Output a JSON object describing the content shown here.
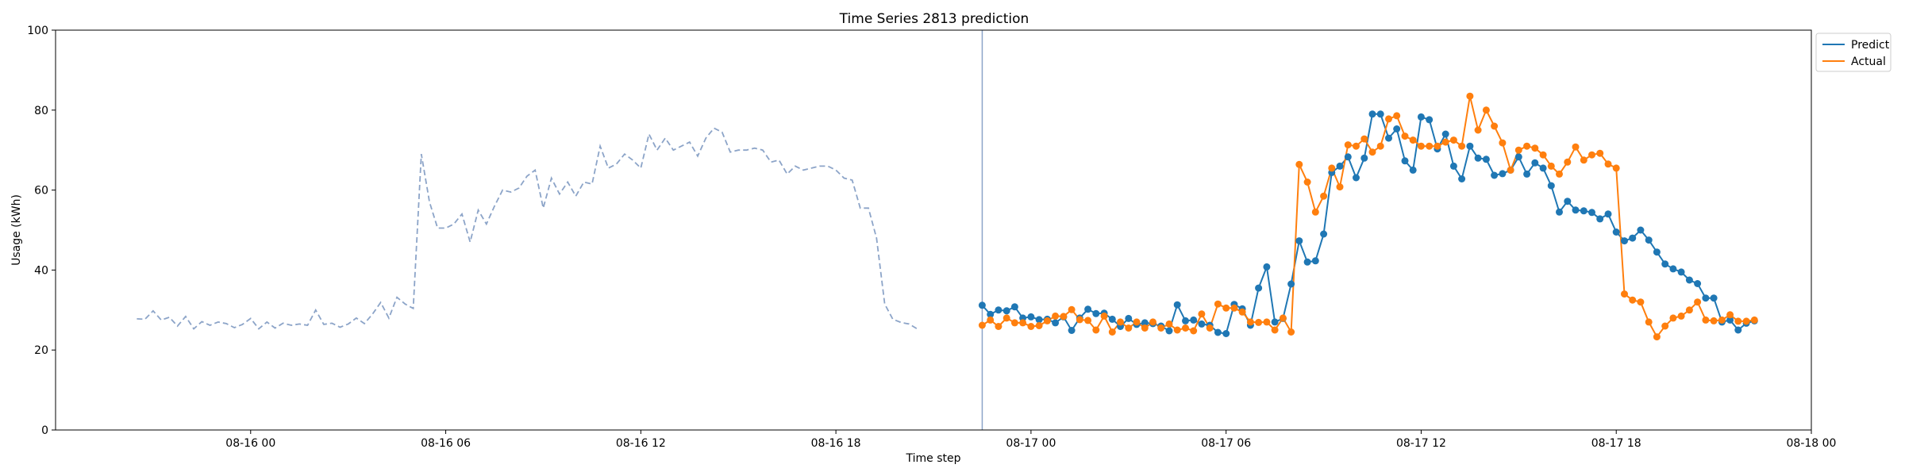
{
  "chart_data": {
    "type": "line",
    "title": "Time Series 2813 prediction",
    "xlabel": "Time step",
    "ylabel": "Usage (kWh)",
    "ylim": [
      0,
      100
    ],
    "yticks": [
      0,
      20,
      40,
      60,
      80,
      100
    ],
    "xlim": [
      "2023-08-15 18:00",
      "2023-08-18 00:00"
    ],
    "xticks": [
      {
        "t": "2023-08-16 00:00",
        "label": "08-16 00"
      },
      {
        "t": "2023-08-16 06:00",
        "label": "08-16 06"
      },
      {
        "t": "2023-08-16 12:00",
        "label": "08-16 12"
      },
      {
        "t": "2023-08-16 18:00",
        "label": "08-16 18"
      },
      {
        "t": "2023-08-17 00:00",
        "label": "08-17 00"
      },
      {
        "t": "2023-08-17 06:00",
        "label": "08-17 06"
      },
      {
        "t": "2023-08-17 12:00",
        "label": "08-17 12"
      },
      {
        "t": "2023-08-17 18:00",
        "label": "08-17 18"
      },
      {
        "t": "2023-08-18 00:00",
        "label": "08-18 00"
      }
    ],
    "split_time": "2023-08-16 22:30",
    "step_minutes": 15,
    "legend": {
      "position": "top-right",
      "entries": [
        "Predict",
        "Actual"
      ]
    },
    "colors": {
      "history": "#8ca4c8",
      "predict": "#1f77b4",
      "actual": "#ff7f0e",
      "split": "#8ca4c8"
    },
    "history": {
      "start": "2023-08-15 20:30",
      "values": [
        27.8,
        27.7,
        29.8,
        27.5,
        28.2,
        26.0,
        28.4,
        25.3,
        27.1,
        26.2,
        27.0,
        26.6,
        25.6,
        26.4,
        27.9,
        25.3,
        27.0,
        25.5,
        26.7,
        26.2,
        26.5,
        26.2,
        30.0,
        26.4,
        26.7,
        25.7,
        26.5,
        28.0,
        26.6,
        29.0,
        31.9,
        28.0,
        33.2,
        31.5,
        30.4,
        69.0,
        57.0,
        50.5,
        50.5,
        51.5,
        54.0,
        47.0,
        55.0,
        51.5,
        56.0,
        60.0,
        59.5,
        60.5,
        63.5,
        65.0,
        55.5,
        63.0,
        59.0,
        62.0,
        58.5,
        62.0,
        61.5,
        71.0,
        65.5,
        66.5,
        69.0,
        67.5,
        65.5,
        74.0,
        70.0,
        73.0,
        70.0,
        71.0,
        72.0,
        68.5,
        73.0,
        75.5,
        74.5,
        69.5,
        70.0,
        70.0,
        70.5,
        70.0,
        67.0,
        67.5,
        64.0,
        66.0,
        65.0,
        65.5,
        66.0,
        66.0,
        65.0,
        63.0,
        62.5,
        55.5,
        55.5,
        48.0,
        31.5,
        27.7,
        26.9,
        26.5,
        25.3
      ]
    },
    "series": [
      {
        "name": "Predict",
        "start": "2023-08-16 22:30",
        "values": [
          31.2,
          28.9,
          30.0,
          29.8,
          30.8,
          28.0,
          28.3,
          27.6,
          27.7,
          26.8,
          28.3,
          24.9,
          28.0,
          30.2,
          29.1,
          29.2,
          27.7,
          25.9,
          27.9,
          26.4,
          26.8,
          26.6,
          26.0,
          24.8,
          31.3,
          27.3,
          27.5,
          26.5,
          26.2,
          24.4,
          24.1,
          31.4,
          30.3,
          26.2,
          35.5,
          40.8,
          27.0,
          27.9,
          36.5,
          47.3,
          42.0,
          42.3,
          49.0,
          64.4,
          66.0,
          68.3,
          63.1,
          68.0,
          79.0,
          79.0,
          73.0,
          75.3,
          67.3,
          65.0,
          78.3,
          77.6,
          70.3,
          74.0,
          66.0,
          62.8,
          71.0,
          68.0,
          67.7,
          63.7,
          64.1,
          65.0,
          68.3,
          64.0,
          66.8,
          65.5,
          61.1,
          54.5,
          57.2,
          55.0,
          54.8,
          54.4,
          52.8,
          54.0,
          49.5,
          47.3,
          48.0,
          50.0,
          47.5,
          44.5,
          41.5,
          40.3,
          39.5,
          37.5,
          36.6,
          33.0,
          33.0,
          27.0,
          27.5,
          25.0,
          26.7,
          27.3
        ]
      },
      {
        "name": "Actual",
        "start": "2023-08-16 22:30",
        "values": [
          26.2,
          27.5,
          25.9,
          28.0,
          26.8,
          26.8,
          25.9,
          26.1,
          27.3,
          28.5,
          28.4,
          30.1,
          27.6,
          27.4,
          25.0,
          28.5,
          24.5,
          27.0,
          25.5,
          27.0,
          25.5,
          27.0,
          25.5,
          26.5,
          25.0,
          25.5,
          24.8,
          29.0,
          25.5,
          31.5,
          30.5,
          30.5,
          29.5,
          27.0,
          26.9,
          27.0,
          25.0,
          28.0,
          24.5,
          66.4,
          62.0,
          54.5,
          58.5,
          65.5,
          60.8,
          71.3,
          71.0,
          72.8,
          69.5,
          71.0,
          77.8,
          78.6,
          73.5,
          72.5,
          71.0,
          71.0,
          71.0,
          72.0,
          72.5,
          71.0,
          83.5,
          75.0,
          80.0,
          76.0,
          71.8,
          65.0,
          70.0,
          71.0,
          70.5,
          68.8,
          66.0,
          64.0,
          67.0,
          70.8,
          67.5,
          68.8,
          69.2,
          66.5,
          65.5,
          34.0,
          32.5,
          32.0,
          27.0,
          23.3,
          26.0,
          28.0,
          28.5,
          30.0,
          32.0,
          27.5,
          27.3,
          27.5,
          28.8,
          27.2,
          27.2,
          27.5
        ]
      }
    ]
  }
}
